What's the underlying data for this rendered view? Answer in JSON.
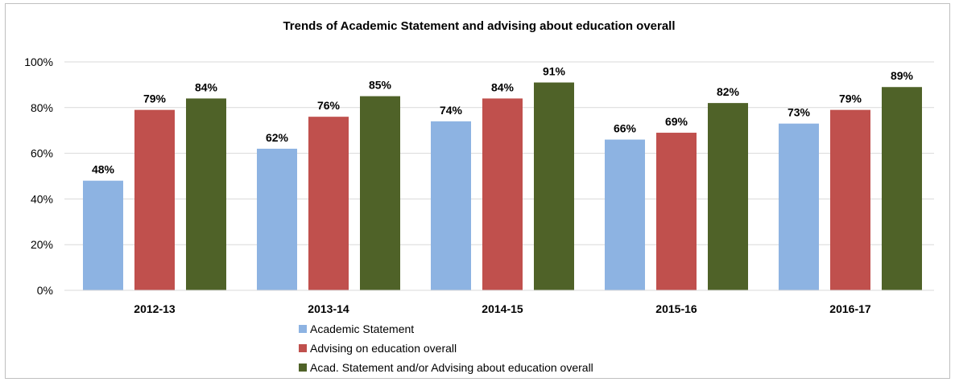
{
  "chart_data": {
    "type": "bar",
    "title": "Trends of Academic Statement and advising about education overall",
    "categories": [
      "2012-13",
      "2013-14",
      "2014-15",
      "2015-16",
      "2016-17"
    ],
    "series": [
      {
        "name": "Academic Statement",
        "color": "#8db3e2",
        "values": [
          48,
          62,
          74,
          66,
          73
        ]
      },
      {
        "name": "Advising on education overall",
        "color": "#c0504d",
        "values": [
          79,
          76,
          84,
          69,
          79
        ]
      },
      {
        "name": "Acad. Statement and/or Advising about education overall",
        "color": "#4f6228",
        "values": [
          84,
          85,
          91,
          82,
          89
        ]
      }
    ],
    "data_labels": [
      [
        "48%",
        "62%",
        "74%",
        "66%",
        "73%"
      ],
      [
        "79%",
        "76%",
        "84%",
        "69%",
        "79%"
      ],
      [
        "84%",
        "85%",
        "91%",
        "82%",
        "89%"
      ]
    ],
    "yticks": [
      "0%",
      "20%",
      "40%",
      "60%",
      "80%",
      "100%"
    ],
    "ylim": [
      0,
      100
    ],
    "grid": true,
    "gridline_color": "#d9d9d9",
    "legend_position": "bottom-center"
  }
}
